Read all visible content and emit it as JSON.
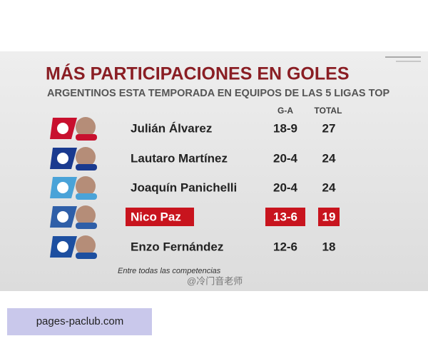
{
  "header": {
    "title": "MÁS PARTICIPACIONES EN GOLES",
    "subtitle": "ARGENTINOS ESTA TEMPORADA EN EQUIPOS DE LAS 5 LIGAS TOP"
  },
  "table": {
    "columns": [
      "G-A",
      "TOTAL"
    ],
    "rows": [
      {
        "name": "Julián Álvarez",
        "ga": "18-9",
        "total": 27,
        "badge": "#c8102e"
      },
      {
        "name": "Lautaro Martínez",
        "ga": "20-4",
        "total": 24,
        "badge": "#1a3a8f"
      },
      {
        "name": "Joaquín Panichelli",
        "ga": "20-4",
        "total": 24,
        "badge": "#4aa3d8"
      },
      {
        "name": "Nico Paz",
        "ga": "13-6",
        "total": 19,
        "badge": "#2f5fa8",
        "highlight": true
      },
      {
        "name": "Enzo Fernández",
        "ga": "12-6",
        "total": 18,
        "badge": "#1d4fa0"
      }
    ]
  },
  "footnote": "Entre todas las competencias",
  "watermark": "@冷门音老师",
  "footer": {
    "url": "pages-paclub.com"
  }
}
